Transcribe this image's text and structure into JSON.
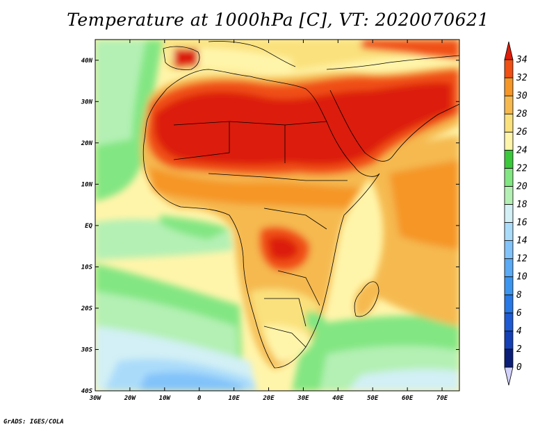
{
  "title": "Temperature at 1000hPa [C], VT: 2020070621",
  "credit": "GrADS: IGES/COLA",
  "map": {
    "lon_range": [
      -30,
      75
    ],
    "lat_range": [
      -40,
      45
    ],
    "lon_ticks": [
      "30W",
      "20W",
      "10W",
      "0",
      "10E",
      "20E",
      "30E",
      "40E",
      "50E",
      "60E",
      "70E"
    ],
    "lat_ticks": [
      "40N",
      "30N",
      "20N",
      "10N",
      "EQ",
      "10S",
      "20S",
      "30S",
      "40S"
    ],
    "region": "Africa"
  },
  "colorbar": {
    "levels": [
      "0",
      "2",
      "4",
      "6",
      "8",
      "10",
      "12",
      "14",
      "16",
      "18",
      "20",
      "22",
      "24",
      "26",
      "28",
      "30",
      "32",
      "34"
    ],
    "colors": [
      "#0a1e78",
      "#1440b4",
      "#1e5ad2",
      "#2878e6",
      "#3c96f0",
      "#5aaaf5",
      "#82c3fa",
      "#aadcfa",
      "#d2f0f5",
      "#b4f0b4",
      "#82e682",
      "#3cc83c",
      "#fff5aa",
      "#fae17d",
      "#f5b950",
      "#f59628",
      "#f05014",
      "#dc1e0a"
    ]
  },
  "chart_data": {
    "type": "heatmap",
    "title": "Temperature at 1000hPa [C], VT: 2020070621",
    "variable": "Temperature at 1000hPa",
    "units": "C",
    "valid_time": "2020070621",
    "x_ticks": [
      "30W",
      "20W",
      "10W",
      "0",
      "10E",
      "20E",
      "30E",
      "40E",
      "50E",
      "60E",
      "70E"
    ],
    "y_ticks": [
      "40N",
      "30N",
      "20N",
      "10N",
      "EQ",
      "10S",
      "20S",
      "30S",
      "40S"
    ],
    "xlim": [
      -30,
      75
    ],
    "ylim": [
      -40,
      45
    ],
    "contour_levels": [
      0,
      2,
      4,
      6,
      8,
      10,
      12,
      14,
      16,
      18,
      20,
      22,
      24,
      26,
      28,
      30,
      32,
      34
    ]
  }
}
